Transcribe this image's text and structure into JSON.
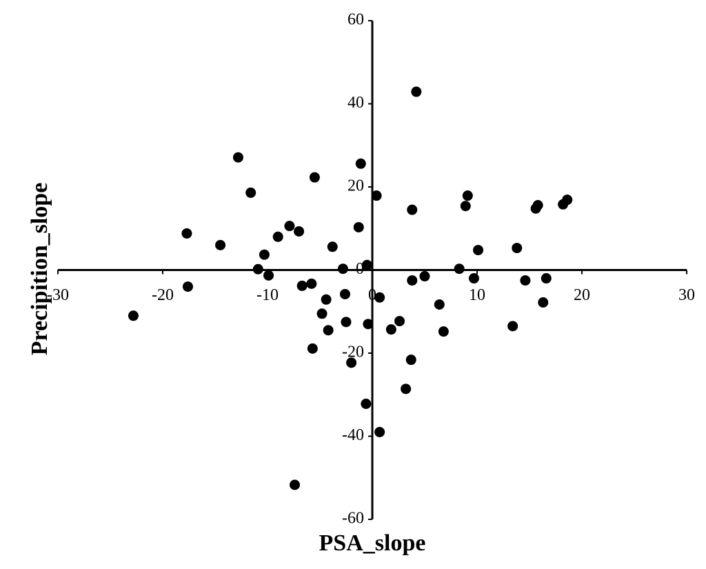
{
  "chart_data": {
    "type": "scatter",
    "x_label": "PSA_slope",
    "y_label": "Precipition_slope",
    "xlim": [
      -30,
      30
    ],
    "ylim": [
      -60,
      60
    ],
    "xticks": [
      -30,
      -20,
      -10,
      0,
      10,
      20,
      30
    ],
    "yticks": [
      -60,
      -40,
      -20,
      0,
      20,
      40,
      60
    ],
    "color": "#000000",
    "x": [
      4.2,
      -12.8,
      -1.1,
      -5.5,
      -11.6,
      0.4,
      9.1,
      8.9,
      3.8,
      15.8,
      15.6,
      18.6,
      18.2,
      -17.7,
      -7.9,
      -7.0,
      -1.3,
      -14.5,
      -9.0,
      -10.3,
      -3.8,
      10.1,
      13.8,
      -10.9,
      -9.9,
      -2.8,
      -0.5,
      8.3,
      5.0,
      3.8,
      9.7,
      14.6,
      16.6,
      -17.6,
      -6.7,
      -5.8,
      -2.6,
      -4.4,
      0.7,
      6.4,
      16.3,
      -22.8,
      -4.8,
      -2.5,
      -0.4,
      2.6,
      -4.2,
      1.8,
      6.8,
      13.4,
      -5.7,
      -2.0,
      3.7,
      3.2,
      -0.6,
      0.7,
      -7.4
    ],
    "values": [
      42.9,
      27.1,
      25.6,
      22.3,
      18.6,
      17.9,
      17.9,
      15.4,
      14.5,
      15.6,
      14.8,
      16.9,
      15.8,
      8.8,
      10.6,
      9.3,
      10.3,
      6.0,
      8.0,
      3.7,
      5.6,
      4.8,
      5.3,
      0.2,
      -1.3,
      0.3,
      1.2,
      0.3,
      -1.5,
      -2.5,
      -2.0,
      -2.5,
      -2.0,
      -4.0,
      -3.8,
      -3.3,
      -5.8,
      -7.1,
      -6.6,
      -8.3,
      -7.8,
      -11.0,
      -10.5,
      -12.5,
      -13.0,
      -12.3,
      -14.5,
      -14.3,
      -14.8,
      -13.5,
      -18.9,
      -22.3,
      -21.6,
      -28.6,
      -32.2,
      -39.0,
      -51.7
    ]
  }
}
